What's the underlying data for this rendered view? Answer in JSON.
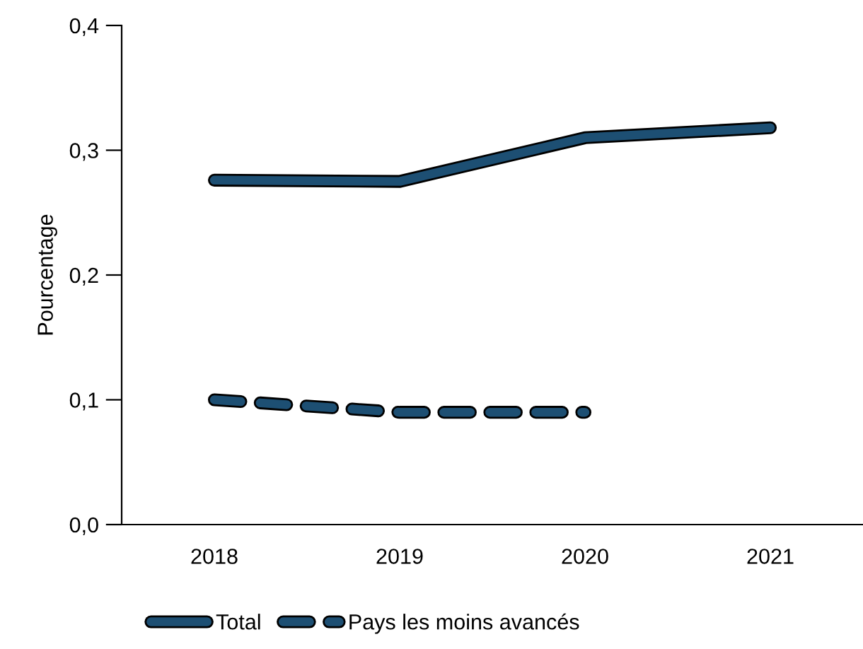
{
  "chart_data": {
    "type": "line",
    "ylabel": "Pourcentage",
    "categories": [
      "2018",
      "2019",
      "2020",
      "2021"
    ],
    "series": [
      {
        "name": "Total",
        "color": "#1d4f73",
        "values": [
          0.276,
          0.275,
          0.31,
          0.318
        ],
        "line_style": "solid"
      },
      {
        "name": "Pays les moins avancés",
        "color": "#1d4f73",
        "values": [
          0.1,
          0.09,
          0.09,
          null
        ],
        "line_style": "dashed"
      }
    ],
    "ylim": [
      0,
      0.4
    ],
    "yticks": [
      {
        "value": 0,
        "label": "0,0"
      },
      {
        "value": 0.1,
        "label": "0,1"
      },
      {
        "value": 0.2,
        "label": "0,2"
      },
      {
        "value": 0.3,
        "label": "0,3"
      },
      {
        "value": 0.4,
        "label": "0,4"
      }
    ],
    "grid": false,
    "legend": "bottom left",
    "marker": "none"
  }
}
